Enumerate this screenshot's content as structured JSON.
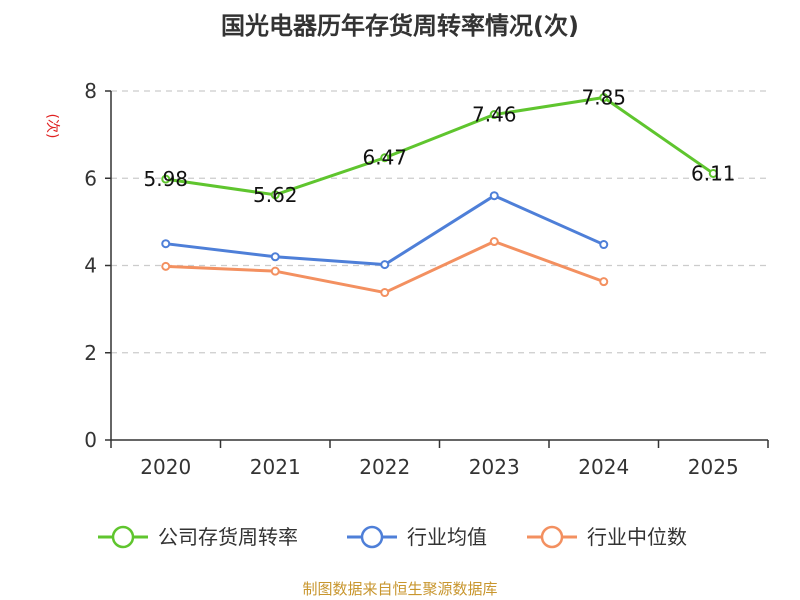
{
  "chart_data": {
    "type": "line",
    "title": "国光电器历年存货周转率情况(次)",
    "ylabel": "(次)",
    "categories": [
      "2020",
      "2021",
      "2022",
      "2023",
      "2024",
      "2025"
    ],
    "ylim": [
      0,
      8
    ],
    "yticks": [
      "0",
      "2",
      "4",
      "6",
      "8"
    ],
    "grid": true,
    "legend_position": "bottom",
    "series": [
      {
        "name": "公司存货周转率",
        "color": "#5fc52e",
        "values": [
          5.98,
          5.62,
          6.47,
          7.46,
          7.85,
          6.11
        ],
        "labels": [
          "5.98",
          "5.62",
          "6.47",
          "7.46",
          "7.85",
          "6.11"
        ]
      },
      {
        "name": "行业均值",
        "color": "#4e7fd8",
        "values": [
          4.5,
          4.2,
          4.02,
          5.6,
          4.48,
          null
        ]
      },
      {
        "name": "行业中位数",
        "color": "#f39060",
        "values": [
          3.98,
          3.87,
          3.38,
          4.55,
          3.63,
          null
        ]
      }
    ],
    "source": "制图数据来自恒生聚源数据库"
  }
}
